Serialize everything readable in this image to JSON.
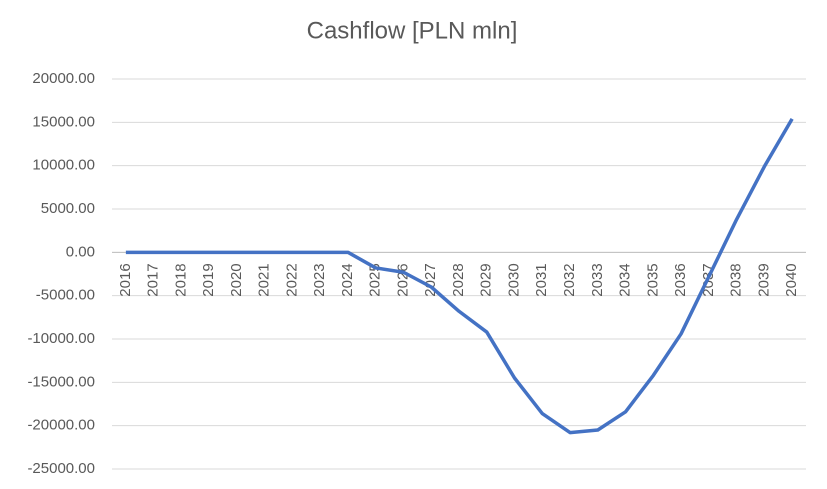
{
  "chart_data": {
    "type": "line",
    "title": "Cashflow [PLN mln]",
    "categories": [
      "2016",
      "2017",
      "2018",
      "2019",
      "2020",
      "2021",
      "2022",
      "2023",
      "2024",
      "2025",
      "2026",
      "2027",
      "2028",
      "2029",
      "2030",
      "2031",
      "2032",
      "2033",
      "2034",
      "2035",
      "2036",
      "2037",
      "2038",
      "2039",
      "2040"
    ],
    "series": [
      {
        "name": "Cashflow",
        "color": "#4472c4",
        "values": [
          0,
          0,
          0,
          0,
          0,
          0,
          0,
          0,
          0,
          -1800,
          -2300,
          -4000,
          -6800,
          -9200,
          -14500,
          -18600,
          -20800,
          -20500,
          -18400,
          -14200,
          -9400,
          -2800,
          3800,
          9900,
          15400
        ]
      }
    ],
    "ylim": [
      -25000,
      20000
    ],
    "yticks": [
      {
        "value": -25000,
        "label": "-25000.00"
      },
      {
        "value": -20000,
        "label": "-20000.00"
      },
      {
        "value": -15000,
        "label": "-15000.00"
      },
      {
        "value": -10000,
        "label": "-10000.00"
      },
      {
        "value": -5000,
        "label": "-5000.00"
      },
      {
        "value": 0,
        "label": "0.00"
      },
      {
        "value": 5000,
        "label": "5000.00"
      },
      {
        "value": 10000,
        "label": "10000.00"
      },
      {
        "value": 15000,
        "label": "15000.00"
      },
      {
        "value": 20000,
        "label": "20000.00"
      }
    ],
    "grid": true
  }
}
